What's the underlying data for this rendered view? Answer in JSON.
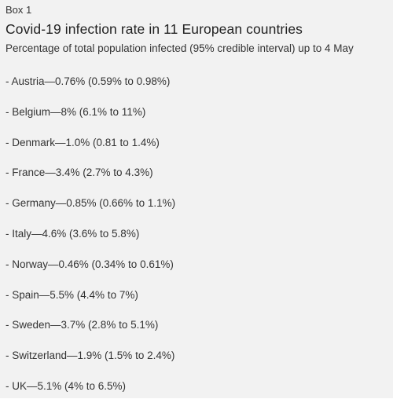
{
  "box": {
    "label": "Box 1",
    "title": "Covid-19 infection rate in 11 European countries",
    "subtitle": "Percentage of total population infected (95% credible interval) up to 4 May",
    "items": [
      "- Austria—0.76% (0.59% to 0.98%)",
      "- Belgium—8% (6.1% to 11%)",
      "- Denmark—1.0% (0.81 to 1.4%)",
      "- France—3.4% (2.7% to 4.3%)",
      "- Germany—0.85% (0.66% to 1.1%)",
      "- Italy—4.6% (3.6% to 5.8%)",
      "- Norway—0.46% (0.34% to 0.61%)",
      "- Spain—5.5% (4.4% to 7%)",
      "- Sweden—3.7% (2.8% to 5.1%)",
      "- Switzerland—1.9% (1.5% to 2.4%)",
      "- UK—5.1% (4% to 6.5%)"
    ]
  }
}
